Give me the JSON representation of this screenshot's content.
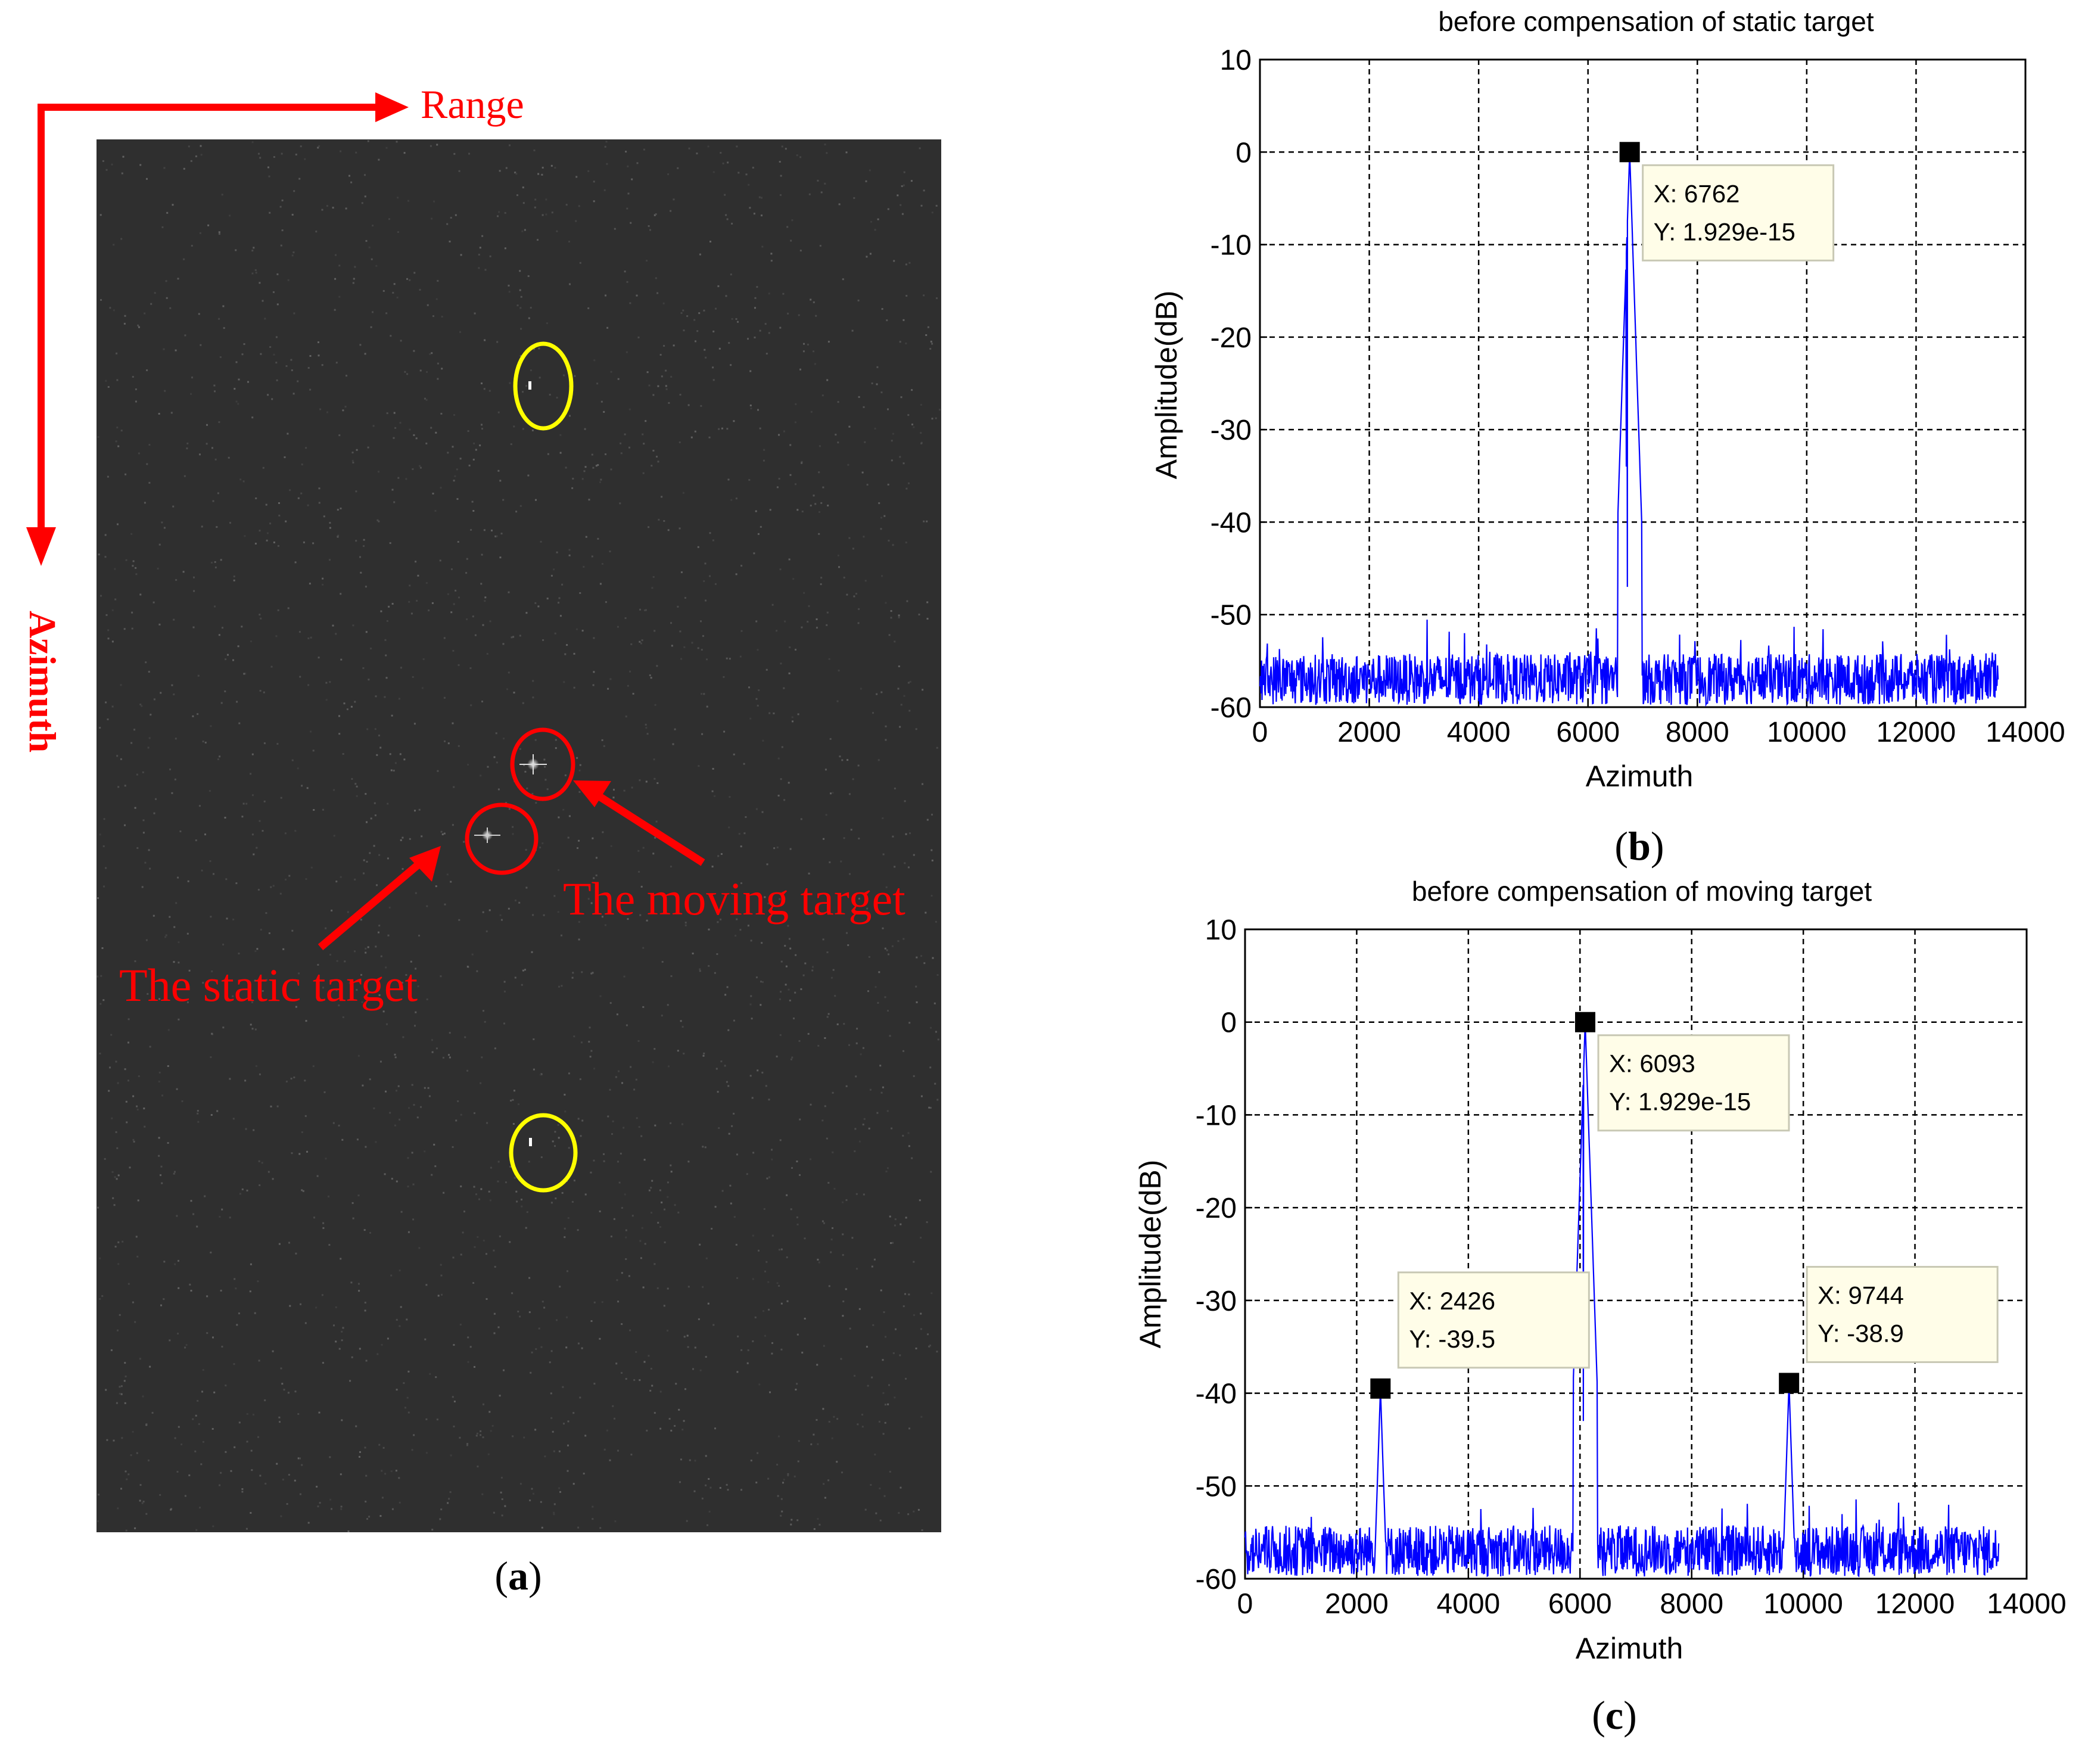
{
  "panel_a": {
    "caption_letter": "a",
    "range_label": "Range",
    "azimuth_label": "Azimuth",
    "static_target_label": "The static target",
    "moving_target_label": "The moving target",
    "colors": {
      "annotation": "#ff0000",
      "ghost_circle": "#ffff00",
      "image_bg": "#2f2f2f"
    },
    "markers": [
      {
        "kind": "ghost",
        "color": "yellow"
      },
      {
        "kind": "moving",
        "color": "red"
      },
      {
        "kind": "static",
        "color": "red"
      },
      {
        "kind": "ghost",
        "color": "yellow"
      }
    ]
  },
  "chart_data": [
    {
      "id": "b",
      "caption_letter": "b",
      "type": "line",
      "title": "before compensation of static target",
      "xlabel": "Azimuth",
      "ylabel": "Amplitude(dB)",
      "xlim": [
        0,
        14000
      ],
      "ylim": [
        -60,
        10
      ],
      "xticks": [
        0,
        2000,
        4000,
        6000,
        8000,
        10000,
        12000,
        14000
      ],
      "yticks": [
        10,
        0,
        -10,
        -20,
        -30,
        -40,
        -50,
        -60
      ],
      "grid": true,
      "color": "#0000ff",
      "noise_floor": -57,
      "data_xmax": 13500,
      "peaks": [
        {
          "x": 6762,
          "y": 0
        },
        {
          "x": 6700,
          "y": -34
        },
        {
          "x": 6720,
          "y": -47
        },
        {
          "x": 6050,
          "y": -54
        }
      ],
      "datatips": [
        {
          "x": 6762,
          "y": 0,
          "x_text": "X: 6762",
          "y_text": "Y: 1.929e-15",
          "box": "right"
        }
      ]
    },
    {
      "id": "c",
      "caption_letter": "c",
      "type": "line",
      "title": "before compensation of moving target",
      "xlabel": "Azimuth",
      "ylabel": "Amplitude(dB)",
      "xlim": [
        0,
        14000
      ],
      "ylim": [
        -60,
        10
      ],
      "xticks": [
        0,
        2000,
        4000,
        6000,
        8000,
        10000,
        12000,
        14000
      ],
      "yticks": [
        10,
        0,
        -10,
        -20,
        -30,
        -40,
        -50,
        -60
      ],
      "grid": true,
      "color": "#0000ff",
      "noise_floor": -57,
      "data_xmax": 13500,
      "peaks": [
        {
          "x": 6093,
          "y": 0
        },
        {
          "x": 6060,
          "y": -43
        },
        {
          "x": 2426,
          "y": -39.5
        },
        {
          "x": 9744,
          "y": -38.9
        }
      ],
      "datatips": [
        {
          "x": 6093,
          "y": 0,
          "x_text": "X: 6093",
          "y_text": "Y: 1.929e-15",
          "box": "right"
        },
        {
          "x": 2426,
          "y": -39.5,
          "x_text": "X: 2426",
          "y_text": "Y: -39.5",
          "box": "above-right"
        },
        {
          "x": 9744,
          "y": -38.9,
          "x_text": "X: 9744",
          "y_text": "Y: -38.9",
          "box": "above-right"
        }
      ]
    }
  ]
}
